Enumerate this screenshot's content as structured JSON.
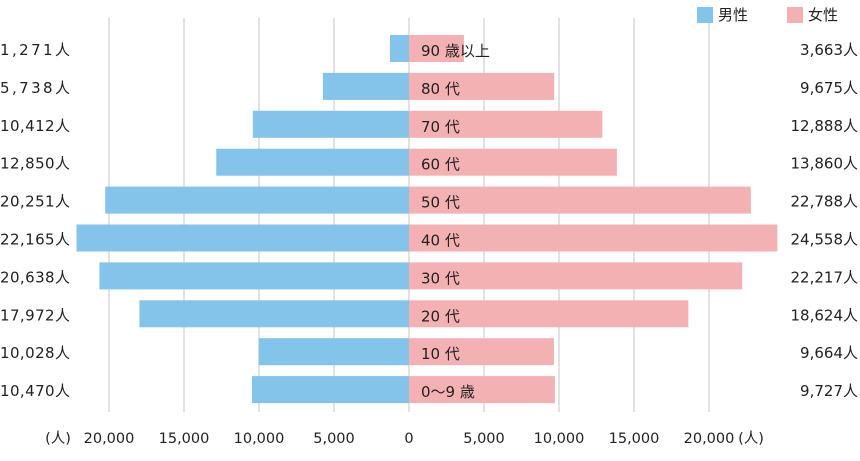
{
  "chart_data": {
    "type": "bar",
    "orientation": "horizontal-population-pyramid",
    "categories": [
      "90 歳以上",
      "80 代",
      "70 代",
      "60 代",
      "50 代",
      "40 代",
      "30 代",
      "20 代",
      "10 代",
      "0〜9 歳"
    ],
    "series": [
      {
        "name": "男性",
        "color": "#84c3ea",
        "values": [
          1271,
          5738,
          10412,
          12850,
          20251,
          22165,
          20638,
          17972,
          10028,
          10470
        ],
        "labels": [
          "1,271人",
          "5,738人",
          "10,412人",
          "12,850人",
          "20,251人",
          "22,165人",
          "20,638人",
          "17,972人",
          "10,028人",
          "10,470人"
        ]
      },
      {
        "name": "女性",
        "color": "#f4b1b4",
        "values": [
          3663,
          9675,
          12888,
          13860,
          22788,
          24558,
          22217,
          18624,
          9664,
          9727
        ],
        "labels": [
          "3,663人",
          "9,675人",
          "12,888人",
          "13,860人",
          "22,788人",
          "24,558人",
          "22,217人",
          "18,624人",
          "9,664人",
          "9,727人"
        ]
      }
    ],
    "x_ticks_left": [
      "20,000",
      "15,000",
      "10,000",
      "5,000"
    ],
    "x_tick_zero": "0",
    "x_ticks_right": [
      "5,000",
      "10,000",
      "15,000",
      "20,000"
    ],
    "x_unit": "(人)",
    "xlim": [
      -25000,
      25000
    ],
    "grid": "vertical"
  }
}
